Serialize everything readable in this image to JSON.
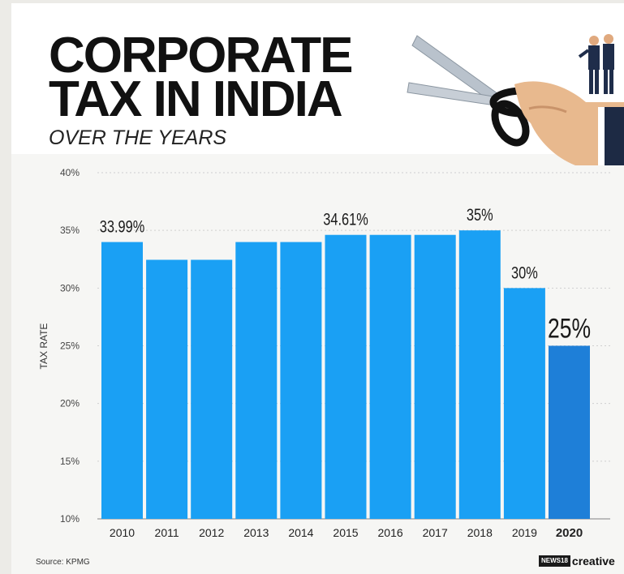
{
  "header": {
    "title_line1": "CORPORATE",
    "title_line2": "TAX IN INDIA",
    "subtitle": "OVER THE YEARS"
  },
  "footer": {
    "source": "Source: KPMG",
    "brand_prefix": "NEWS18",
    "brand_name": "creative"
  },
  "colors": {
    "bar": "#1aa0f4",
    "bar_highlight": "#1e7fd8",
    "grid": "#cfcfcf",
    "text": "#222222"
  },
  "chart_data": {
    "type": "bar",
    "categories": [
      "2010",
      "2011",
      "2012",
      "2013",
      "2014",
      "2015",
      "2016",
      "2017",
      "2018",
      "2019",
      "2020"
    ],
    "values": [
      33.99,
      32.45,
      32.45,
      33.99,
      33.99,
      34.61,
      34.61,
      34.61,
      35,
      30,
      25
    ],
    "data_labels": [
      "33.99%",
      "",
      "",
      "",
      "",
      "34.61%",
      "",
      "",
      "35%",
      "30%",
      "25%"
    ],
    "ylabel": "TAX RATE",
    "ylim": [
      10,
      40
    ],
    "yticks": [
      10,
      15,
      20,
      25,
      30,
      35,
      40
    ],
    "ytick_labels": [
      "10%",
      "15%",
      "20%",
      "25%",
      "30%",
      "35%",
      "40%"
    ],
    "highlight_category": "2020",
    "grid": "horizontal dashed"
  }
}
